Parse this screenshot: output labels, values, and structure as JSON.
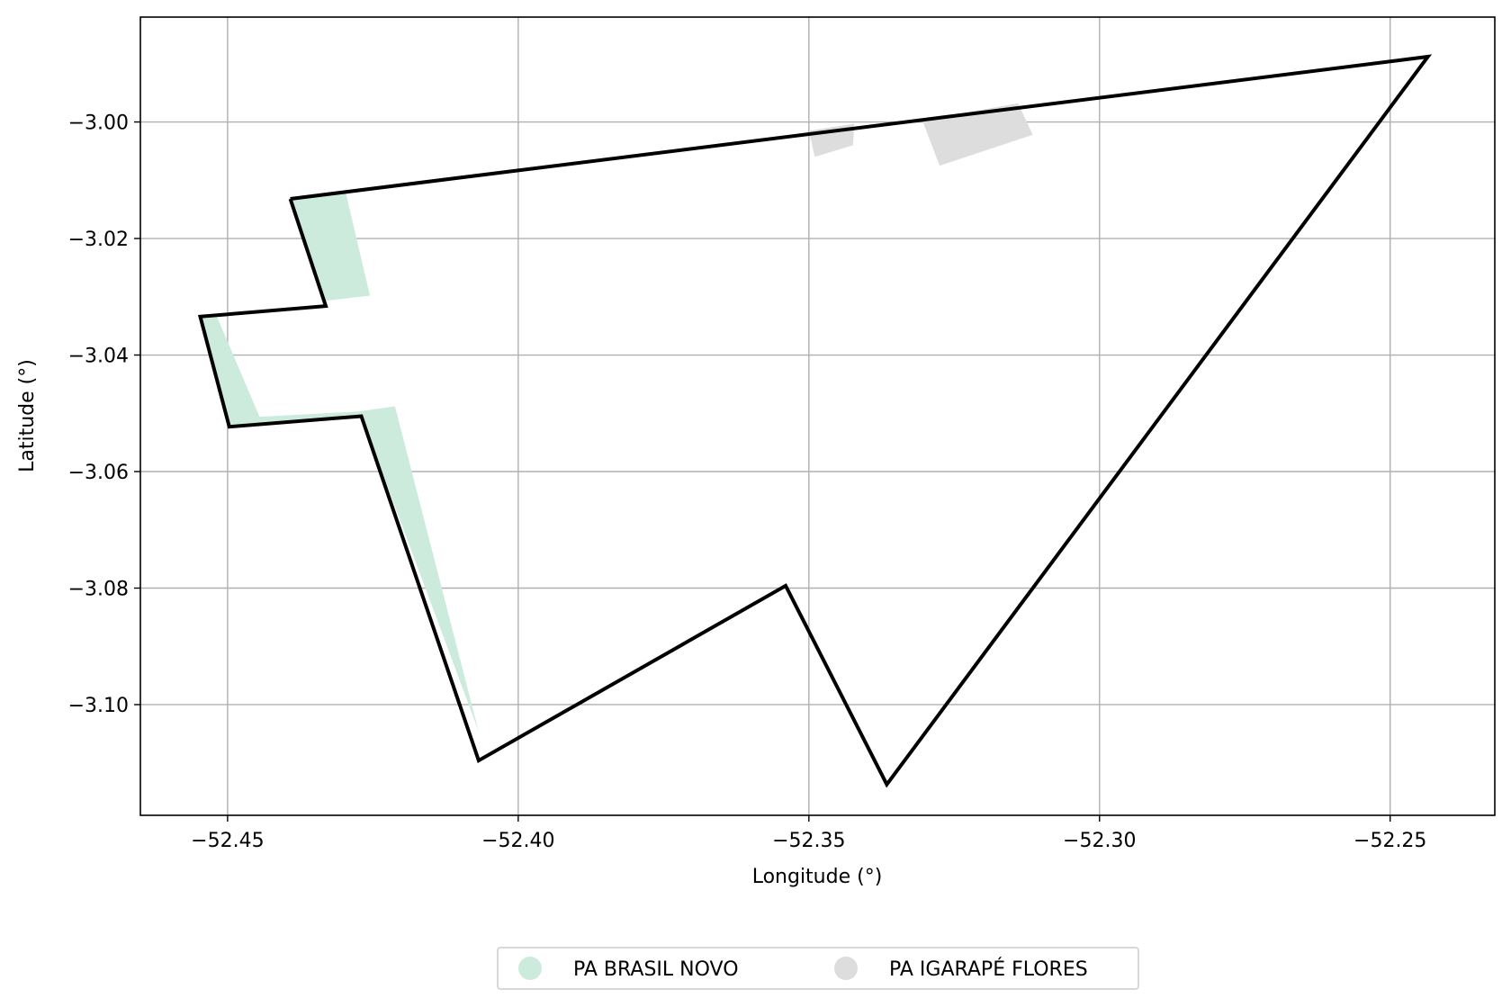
{
  "chart_data": {
    "type": "map",
    "xlabel": "Longitude (°)",
    "ylabel": "Latitude (°)",
    "xlim": [
      -52.465,
      -52.232
    ],
    "ylim": [
      -3.119,
      -2.982
    ],
    "xticks": [
      -52.45,
      -52.4,
      -52.35,
      -52.3,
      -52.25
    ],
    "xtick_labels": [
      "−52.45",
      "−52.40",
      "−52.35",
      "−52.30",
      "−52.25"
    ],
    "yticks": [
      -3.0,
      -3.02,
      -3.04,
      -3.06,
      -3.08,
      -3.1
    ],
    "ytick_labels": [
      "−3.00",
      "−3.02",
      "−3.04",
      "−3.06",
      "−3.08",
      "−3.10"
    ],
    "grid": true,
    "legend_position": "bottom-center",
    "boundary": {
      "color": "#000000",
      "coords": [
        [
          -52.4392,
          -3.0132
        ],
        [
          -52.2435,
          -2.9888
        ],
        [
          -52.3366,
          -3.1137
        ],
        [
          -52.354,
          -3.0796
        ],
        [
          -52.4068,
          -3.1096
        ],
        [
          -52.427,
          -3.0505
        ],
        [
          -52.4497,
          -3.0523
        ],
        [
          -52.4547,
          -3.0334
        ],
        [
          -52.4331,
          -3.0316
        ],
        [
          -52.4392,
          -3.0132
        ]
      ]
    },
    "areas": [
      {
        "name": "PA BRASIL NOVO",
        "color": "#cdebdd",
        "polygons": [
          [
            [
              -52.4393,
              -3.0132
            ],
            [
              -52.4297,
              -3.012
            ],
            [
              -52.4255,
              -3.0298
            ],
            [
              -52.4331,
              -3.0307
            ],
            [
              -52.4393,
              -3.0132
            ]
          ],
          [
            [
              -52.4547,
              -3.0334
            ],
            [
              -52.452,
              -3.033
            ],
            [
              -52.4445,
              -3.0506
            ],
            [
              -52.4275,
              -3.0497
            ],
            [
              -52.4212,
              -3.0488
            ],
            [
              -52.4068,
              -3.1046
            ],
            [
              -52.427,
              -3.0505
            ],
            [
              -52.4497,
              -3.0523
            ],
            [
              -52.4547,
              -3.0334
            ]
          ]
        ]
      },
      {
        "name": "PA IGARAPÉ FLORES",
        "color": "#dddddd",
        "polygons": [
          [
            [
              -52.35,
              -3.0015
            ],
            [
              -52.3422,
              -3.0003
            ],
            [
              -52.3424,
              -3.004
            ],
            [
              -52.349,
              -3.006
            ],
            [
              -52.35,
              -3.0015
            ]
          ],
          [
            [
              -52.3305,
              -2.9997
            ],
            [
              -52.314,
              -2.9968
            ],
            [
              -52.3115,
              -3.0022
            ],
            [
              -52.3275,
              -3.0075
            ],
            [
              -52.3305,
              -2.9997
            ]
          ]
        ]
      }
    ]
  }
}
